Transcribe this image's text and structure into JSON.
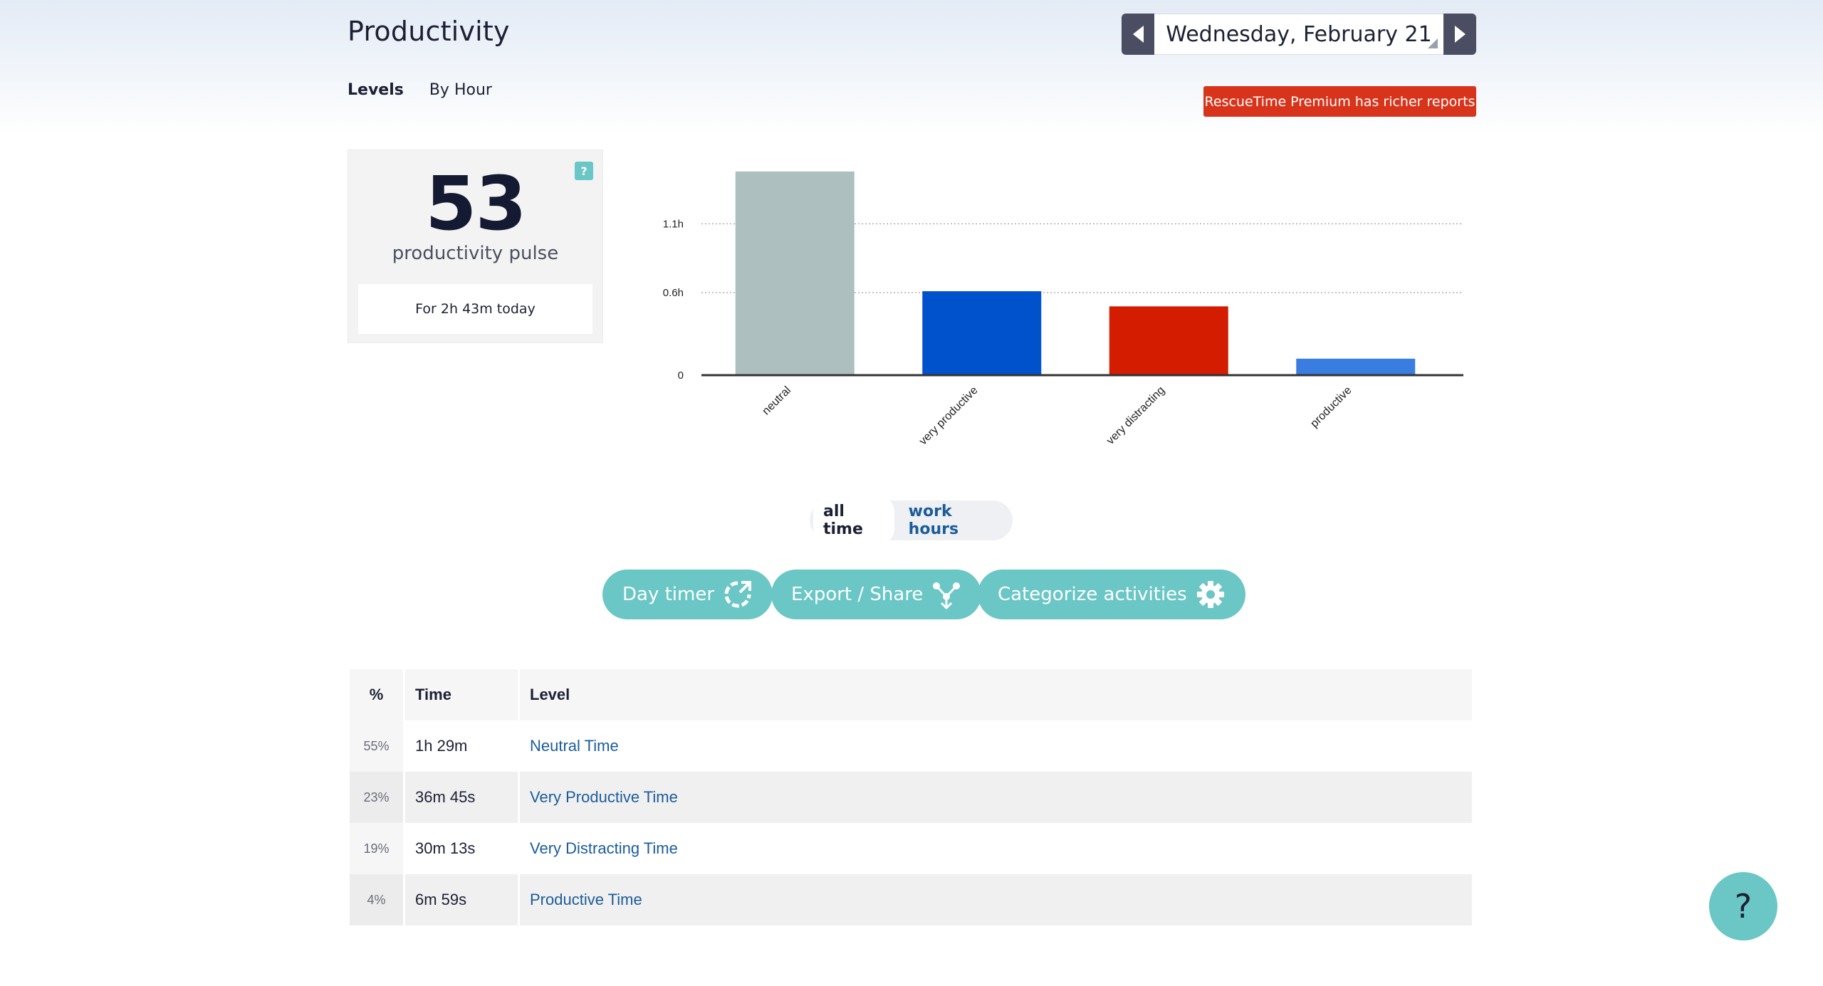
{
  "header": {
    "title": "Productivity",
    "date": "Wednesday, February 21"
  },
  "tabs": [
    {
      "label": "Levels",
      "active": true
    },
    {
      "label": "By Hour",
      "active": false
    }
  ],
  "premium_button": "RescueTime Premium has richer reports",
  "pulse": {
    "value": "53",
    "label": "productivity pulse",
    "help": "?",
    "time_text": "For 2h 43m today"
  },
  "chart_data": {
    "type": "bar",
    "categories": [
      "neutral",
      "very productive",
      "very distracting",
      "productive"
    ],
    "values": [
      1.48,
      0.61,
      0.5,
      0.12
    ],
    "colors": [
      "#aebfc0",
      "#0052cc",
      "#d41c00",
      "#3a7de0"
    ],
    "ytick_labels": [
      "0",
      "0.6h",
      "1.1h"
    ],
    "ytick_values": [
      0,
      0.6,
      1.1
    ],
    "ylim": [
      0,
      1.5
    ],
    "grid": true
  },
  "toggle": {
    "options": [
      "all time",
      "work hours"
    ],
    "active": "all time"
  },
  "actions": {
    "day_timer": "Day timer",
    "export_share": "Export / Share",
    "categorize": "Categorize activities"
  },
  "table": {
    "headers": [
      "%",
      "Time",
      "Level"
    ],
    "rows": [
      {
        "pct": "55%",
        "time": "1h 29m",
        "level": "Neutral Time"
      },
      {
        "pct": "23%",
        "time": "36m 45s",
        "level": "Very Productive Time"
      },
      {
        "pct": "19%",
        "time": "30m 13s",
        "level": "Very Distracting Time"
      },
      {
        "pct": "4%",
        "time": "6m 59s",
        "level": "Productive Time"
      }
    ]
  },
  "help_fab": "?",
  "colors": {
    "accent_teal": "#6bc6c6",
    "premium_red": "#d8341b",
    "link_blue": "#1c5c9a",
    "nav_dark": "#4b4e63"
  }
}
